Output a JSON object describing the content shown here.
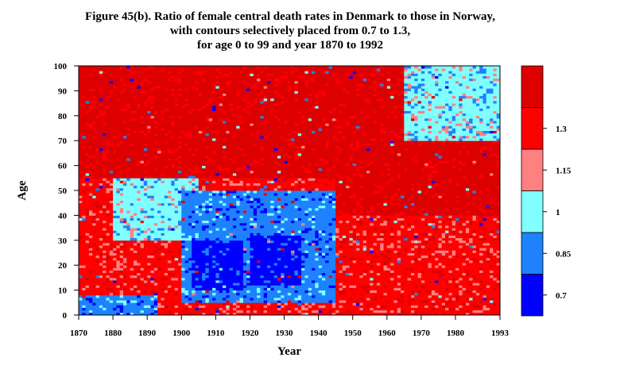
{
  "chart_data": {
    "type": "heatmap",
    "title_lines": [
      "Figure 45(b). Ratio of female central death rates in Denmark to those in Norway,",
      "with contours selectively placed from 0.7 to 1.3,",
      "for age 0 to 99 and year 1870 to 1992"
    ],
    "xlabel": "Year",
    "ylabel": "Age",
    "xlim": [
      1870,
      1993
    ],
    "ylim": [
      0,
      100
    ],
    "x_ticks": [
      1870,
      1880,
      1890,
      1900,
      1910,
      1920,
      1930,
      1940,
      1950,
      1960,
      1970,
      1980,
      1993
    ],
    "y_ticks": [
      0,
      10,
      20,
      30,
      40,
      50,
      60,
      70,
      80,
      90,
      100
    ],
    "legend": {
      "placement": "right",
      "bins": [
        {
          "label": "0.7",
          "color": "#0000ff"
        },
        {
          "label": "0.85",
          "color": "#1e82ff"
        },
        {
          "label": "1",
          "color": "#80ffff"
        },
        {
          "label": "1.15",
          "color": "#ff8080"
        },
        {
          "label": "1.3",
          "color": "#ff0000"
        },
        {
          "label": "",
          "color": "#dd0000"
        }
      ]
    },
    "dominant_bins_by_region": [
      {
        "years": [
          1870,
          1893
        ],
        "ages": [
          0,
          8
        ],
        "bin": 1
      },
      {
        "years": [
          1870,
          1900
        ],
        "ages": [
          8,
          50
        ],
        "bin": 4
      },
      {
        "years": [
          1880,
          1905
        ],
        "ages": [
          30,
          55
        ],
        "bin": 2
      },
      {
        "years": [
          1900,
          1945
        ],
        "ages": [
          5,
          50
        ],
        "bin": 1
      },
      {
        "years": [
          1903,
          1918
        ],
        "ages": [
          10,
          30
        ],
        "bin": 0
      },
      {
        "years": [
          1920,
          1935
        ],
        "ages": [
          12,
          32
        ],
        "bin": 0
      },
      {
        "years": [
          1870,
          1945
        ],
        "ages": [
          55,
          100
        ],
        "bin": 5
      },
      {
        "years": [
          1945,
          1993
        ],
        "ages": [
          0,
          40
        ],
        "bin": 4
      },
      {
        "years": [
          1945,
          1993
        ],
        "ages": [
          40,
          100
        ],
        "bin": 5
      },
      {
        "years": [
          1965,
          1993
        ],
        "ages": [
          70,
          100
        ],
        "bin": 2
      }
    ]
  }
}
